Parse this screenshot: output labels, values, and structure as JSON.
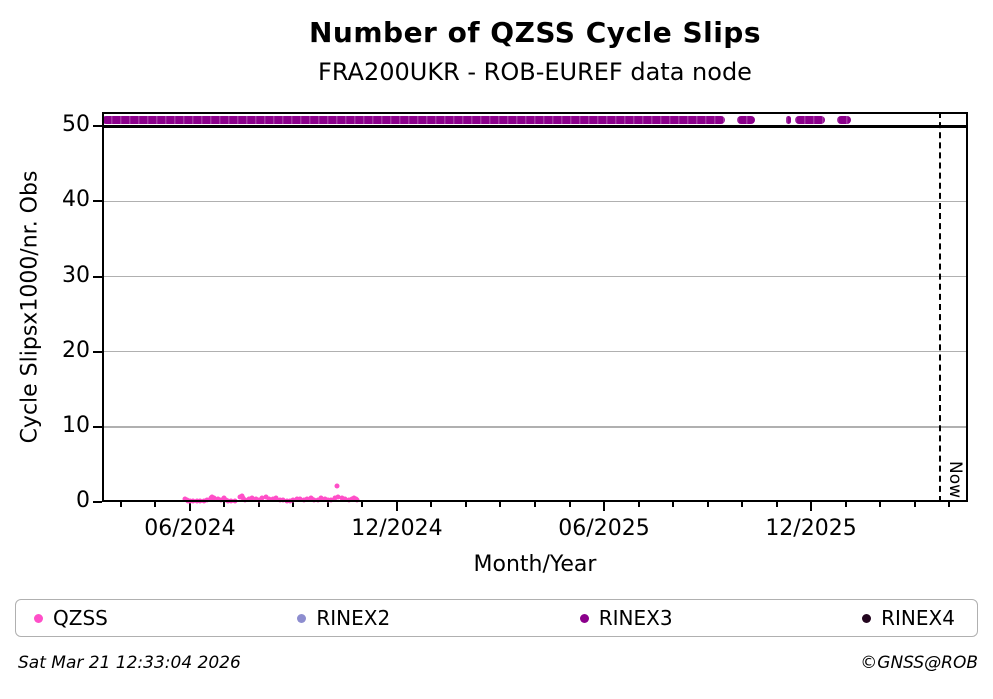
{
  "title": "Number of QZSS Cycle Slips",
  "subtitle": "FRA200UKR - ROB-EUREF data node",
  "footer": {
    "timestamp": "Sat Mar 21 12:33:04 2026",
    "credit": "©GNSS@ROB"
  },
  "legend": [
    {
      "label": "QZSS",
      "color": "#ff4fc8"
    },
    {
      "label": "RINEX2",
      "color": "#8d8dcf"
    },
    {
      "label": "RINEX3",
      "color": "#8b008b"
    },
    {
      "label": "RINEX4",
      "color": "#23061f"
    }
  ],
  "chart_data": {
    "type": "scatter",
    "title": "Number of QZSS Cycle Slips",
    "subtitle": "FRA200UKR - ROB-EUREF data node",
    "xlabel": "Month/Year",
    "ylabel": "Cycle Slipsx1000/nr. Obs",
    "x_unit": "months relative to the 06/2024 tick (1.0 = one month)",
    "x_range": [
      -2.55,
      22.55
    ],
    "y_range": [
      0,
      51.9
    ],
    "grid": "horizontal only, gray, at 10/20/30/40",
    "y_ticks": [
      0,
      10,
      20,
      30,
      40,
      50
    ],
    "grid_values": [
      10,
      20,
      30,
      40
    ],
    "cap_line_value": 50,
    "x_major_ticks": [
      {
        "pos": 0,
        "label": "06/2024"
      },
      {
        "pos": 6,
        "label": "12/2024"
      },
      {
        "pos": 12,
        "label": "06/2025"
      },
      {
        "pos": 18,
        "label": "12/2025"
      }
    ],
    "x_minor_ticks": [
      -2,
      -1,
      0,
      1,
      2,
      3,
      4,
      5,
      6,
      7,
      8,
      9,
      10,
      11,
      12,
      13,
      14,
      15,
      16,
      17,
      18,
      19,
      20,
      21,
      22
    ],
    "now_line": {
      "pos": 21.74,
      "label": "Now"
    },
    "legend_position": "below plot, horizontal strip",
    "series": [
      {
        "name": "QZSS",
        "color": "#ff4fc8",
        "style": "dots near zero",
        "points": [
          [
            -0.15,
            0.45
          ],
          [
            -0.1,
            0.2
          ],
          [
            -0.05,
            0.1
          ],
          [
            0.0,
            0.08
          ],
          [
            0.1,
            0.12
          ],
          [
            0.2,
            0.1
          ],
          [
            0.3,
            0.15
          ],
          [
            0.4,
            0.1
          ],
          [
            0.5,
            0.3
          ],
          [
            0.6,
            0.55
          ],
          [
            0.65,
            0.6
          ],
          [
            0.7,
            0.5
          ],
          [
            0.8,
            0.45
          ],
          [
            0.9,
            0.2
          ],
          [
            1.0,
            0.55
          ],
          [
            1.05,
            0.3
          ],
          [
            1.1,
            0.15
          ],
          [
            1.2,
            0.1
          ],
          [
            1.3,
            0.12
          ],
          [
            1.45,
            0.6
          ],
          [
            1.5,
            0.75
          ],
          [
            1.55,
            0.5
          ],
          [
            1.6,
            0.3
          ],
          [
            1.7,
            0.35
          ],
          [
            1.8,
            0.5
          ],
          [
            1.9,
            0.4
          ],
          [
            2.0,
            0.25
          ],
          [
            2.1,
            0.55
          ],
          [
            2.2,
            0.6
          ],
          [
            2.3,
            0.4
          ],
          [
            2.4,
            0.35
          ],
          [
            2.5,
            0.5
          ],
          [
            2.6,
            0.3
          ],
          [
            2.7,
            0.2
          ],
          [
            2.8,
            0.15
          ],
          [
            2.9,
            0.1
          ],
          [
            3.0,
            0.2
          ],
          [
            3.1,
            0.35
          ],
          [
            3.2,
            0.4
          ],
          [
            3.3,
            0.3
          ],
          [
            3.4,
            0.45
          ],
          [
            3.5,
            0.5
          ],
          [
            3.55,
            0.35
          ],
          [
            3.6,
            0.2
          ],
          [
            3.7,
            0.3
          ],
          [
            3.8,
            0.55
          ],
          [
            3.9,
            0.45
          ],
          [
            4.0,
            0.3
          ],
          [
            4.1,
            0.25
          ],
          [
            4.2,
            0.5
          ],
          [
            4.26,
            2.1
          ],
          [
            4.3,
            0.6
          ],
          [
            4.4,
            0.5
          ],
          [
            4.5,
            0.35
          ],
          [
            4.6,
            0.3
          ],
          [
            4.7,
            0.45
          ],
          [
            4.75,
            0.55
          ],
          [
            4.8,
            0.4
          ],
          [
            4.85,
            0.3
          ]
        ]
      },
      {
        "name": "RINEX2",
        "color": "#8d8dcf",
        "style": "no visible points",
        "points": []
      },
      {
        "name": "RINEX3",
        "color": "#8b008b",
        "style": "dense horizontal band of dots clipped above the 50 cap line",
        "band_value": 50.8,
        "segments": [
          [
            -2.55,
            15.51
          ],
          [
            15.86,
            16.38
          ],
          [
            17.27,
            17.4
          ],
          [
            17.54,
            18.41
          ],
          [
            18.75,
            19.16
          ]
        ]
      },
      {
        "name": "RINEX4",
        "color": "#23061f",
        "style": "no visible points",
        "points": []
      }
    ]
  }
}
